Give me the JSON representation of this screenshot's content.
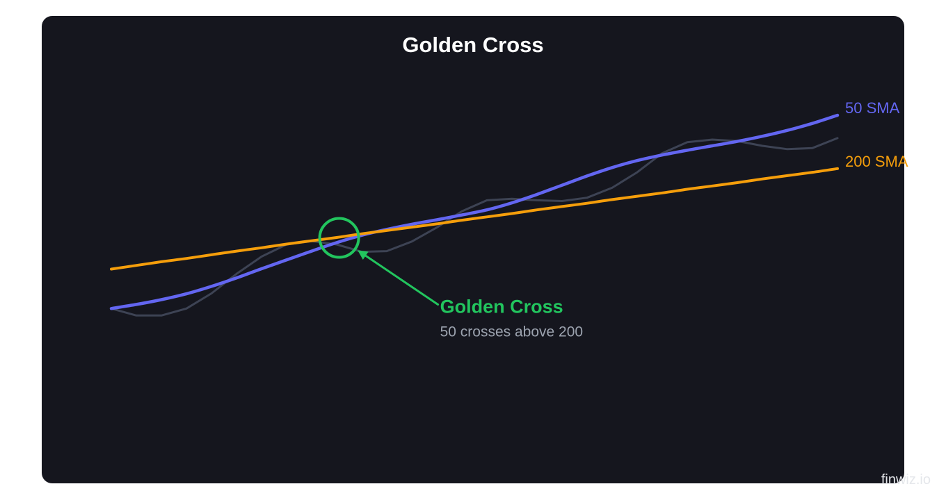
{
  "chart_data": {
    "type": "line",
    "title": "Golden Cross",
    "xlabel": "",
    "ylabel": "",
    "xlim": [
      0,
      30
    ],
    "ylim": [
      0,
      100
    ],
    "grid": false,
    "legend": "inline-right",
    "x": [
      0,
      1,
      2,
      3,
      4,
      5,
      6,
      7,
      8,
      9,
      10,
      11,
      12,
      13,
      14,
      15,
      16,
      17,
      18,
      19,
      20,
      21,
      22,
      23,
      24,
      25,
      26,
      27,
      28,
      29,
      30
    ],
    "series": [
      {
        "name": "",
        "color": "#3d4354",
        "values": [
          27.5,
          25.6,
          25.6,
          27.5,
          31.6,
          36.9,
          41.6,
          44.9,
          45.8,
          44.9,
          42.9,
          43.1,
          45.7,
          49.5,
          53.9,
          56.9,
          57.3,
          56.9,
          56.7,
          57.6,
          60.3,
          64.5,
          69.7,
          72.7,
          73.4,
          73.0,
          71.7,
          70.8,
          71.1,
          73.8,
          null
        ]
      },
      {
        "name": "50 SMA",
        "color": "#6366f1",
        "values": [
          27.5,
          28.6,
          29.9,
          31.5,
          33.5,
          35.8,
          38.3,
          40.7,
          43.1,
          45.4,
          47.4,
          49.0,
          50.4,
          51.6,
          52.9,
          54.3,
          56.2,
          58.5,
          61.0,
          63.5,
          65.8,
          67.7,
          69.2,
          70.5,
          71.7,
          72.9,
          74.3,
          75.9,
          77.8,
          80.0,
          null
        ]
      },
      {
        "name": "200 SMA",
        "color": "#f59e0b",
        "values": [
          38.2,
          39.2,
          40.2,
          41.1,
          42.1,
          43.1,
          44.0,
          45.0,
          45.9,
          46.8,
          47.8,
          48.7,
          49.6,
          50.5,
          51.5,
          52.4,
          53.3,
          54.3,
          55.2,
          56.1,
          57.1,
          58.0,
          58.9,
          59.9,
          60.8,
          61.7,
          62.7,
          63.6,
          64.5,
          65.5,
          null
        ]
      }
    ],
    "annotations": [
      {
        "title": "Golden Cross",
        "text": "50 crosses above 200",
        "x": 9.1,
        "y": 46.7,
        "color": "#22c55e"
      }
    ]
  },
  "watermark": "finwiz.io",
  "colors": {
    "background": "#15161e",
    "title": "#ffffff",
    "subtext": "#9ca3af",
    "annotation": "#22c55e",
    "watermark": "#e5e7eb"
  }
}
